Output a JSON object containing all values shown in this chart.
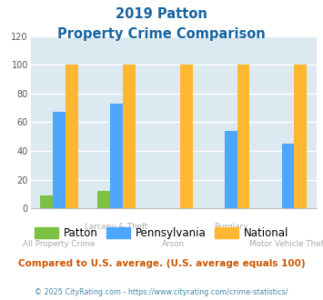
{
  "title_line1": "2019 Patton",
  "title_line2": "Property Crime Comparison",
  "categories": [
    "All Property Crime",
    "Larceny & Theft",
    "Arson",
    "Burglary",
    "Motor Vehicle Theft"
  ],
  "series": {
    "Patton": [
      9,
      12,
      null,
      null,
      null
    ],
    "Pennsylvania": [
      67,
      73,
      null,
      54,
      45
    ],
    "National": [
      100,
      100,
      100,
      100,
      100
    ]
  },
  "colors": {
    "Patton": "#7bc143",
    "Pennsylvania": "#4da6ff",
    "National": "#ffb732"
  },
  "ylim": [
    0,
    120
  ],
  "yticks": [
    0,
    20,
    40,
    60,
    80,
    100,
    120
  ],
  "background_color": "#dce9f0",
  "figure_background": "#ffffff",
  "title_color": "#1565a0",
  "footer_text": "Compared to U.S. average. (U.S. average equals 100)",
  "footer_color": "#cc5500",
  "copyright_text": "© 2025 CityRating.com - https://www.cityrating.com/crime-statistics/",
  "copyright_color": "#4488aa",
  "grid_color": "#ffffff",
  "bar_width": 0.22,
  "row1_labels": {
    "1": "Larceny & Theft",
    "3": "Burglary"
  },
  "row2_labels": {
    "0": "All Property Crime",
    "2": "Arson",
    "4": "Motor Vehicle Theft"
  },
  "label_color": "#aaaaaa"
}
